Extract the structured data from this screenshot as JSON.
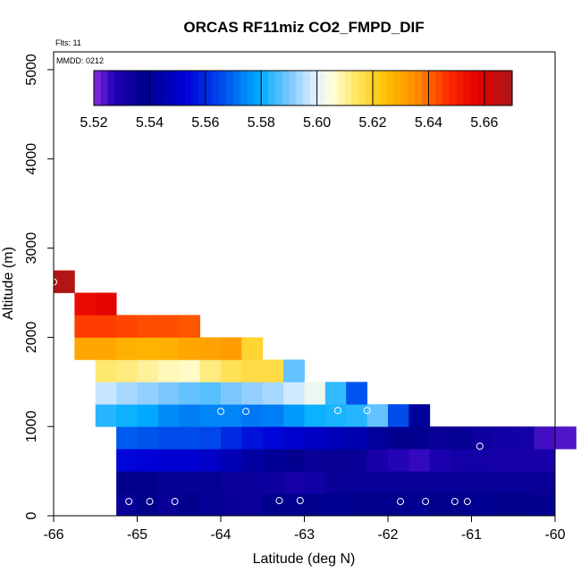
{
  "chart_data": {
    "type": "heatmap",
    "title": "ORCAS RF11miz CO2_FMPD_DIF",
    "xlabel": "Latitude (deg N)",
    "ylabel": "Altitude (m)",
    "xlim": [
      -66,
      -60
    ],
    "ylim": [
      0,
      5200
    ],
    "x_ticks": [
      "-66",
      "-65",
      "-64",
      "-63",
      "-62",
      "-61",
      "-60"
    ],
    "y_ticks": [
      "0",
      "1000",
      "2000",
      "3000",
      "4000",
      "5000"
    ],
    "annotations": {
      "flights": "Flts: 11",
      "date": "MMDD: 0212"
    },
    "colorbar": {
      "min": 5.52,
      "max": 5.67,
      "ticks": [
        "5.52",
        "5.54",
        "5.56",
        "5.58",
        "5.60",
        "5.62",
        "5.64",
        "5.66"
      ]
    },
    "cell_width_deg": 0.25,
    "cell_height_m": 250,
    "rows": [
      {
        "alt": 0,
        "x_start": -65.25,
        "values": [
          5.535,
          5.538,
          5.535,
          5.538,
          5.536,
          5.535,
          5.534,
          5.538,
          5.537,
          5.538,
          5.539,
          5.538,
          5.538,
          5.538,
          5.539,
          5.538,
          5.538,
          5.539,
          5.538,
          5.538,
          5.537
        ]
      },
      {
        "alt": 250,
        "x_start": -65.25,
        "values": [
          5.538,
          5.538,
          5.536,
          5.536,
          5.536,
          5.534,
          5.534,
          5.533,
          5.53,
          5.532,
          5.535,
          5.535,
          5.535,
          5.535,
          5.535,
          5.535,
          5.535,
          5.535,
          5.535,
          5.535,
          5.535
        ]
      },
      {
        "alt": 500,
        "x_start": -65.25,
        "values": [
          5.554,
          5.553,
          5.552,
          5.552,
          5.55,
          5.546,
          5.542,
          5.54,
          5.537,
          5.535,
          5.536,
          5.535,
          5.53,
          5.527,
          5.526,
          5.529,
          5.531,
          5.531,
          5.53,
          5.53,
          5.53
        ]
      },
      {
        "alt": 750,
        "x_start": -65.25,
        "values": [
          5.568,
          5.567,
          5.566,
          5.566,
          5.565,
          5.56,
          5.556,
          5.554,
          5.551,
          5.549,
          5.547,
          5.545,
          5.541,
          5.537,
          5.537,
          5.535,
          5.536,
          5.533,
          5.532,
          5.531,
          5.525,
          5.524
        ]
      },
      {
        "alt": 1000,
        "x_start": -65.5,
        "values": [
          5.583,
          5.581,
          5.579,
          5.575,
          5.573,
          5.574,
          5.574,
          5.572,
          5.573,
          5.577,
          5.581,
          5.582,
          5.583,
          5.588,
          5.566,
          5.541
        ]
      },
      {
        "alt": 1250,
        "x_start": -65.5,
        "values": [
          5.597,
          5.594,
          5.592,
          5.59,
          5.588,
          5.587,
          5.59,
          5.592,
          5.594,
          5.598,
          5.602,
          5.584,
          5.567
        ]
      },
      {
        "alt": 1500,
        "x_start": -65.5,
        "values": [
          5.613,
          5.612,
          5.61,
          5.608,
          5.607,
          5.612,
          5.615,
          5.617,
          5.617,
          5.588
        ]
      },
      {
        "alt": 1750,
        "x_start": -65.75,
        "values": [
          5.63,
          5.63,
          5.628,
          5.627,
          5.628,
          5.63,
          5.631,
          5.632,
          5.619
        ]
      },
      {
        "alt": 2000,
        "x_start": -65.75,
        "values": [
          5.645,
          5.645,
          5.644,
          5.643,
          5.643,
          5.642
        ]
      },
      {
        "alt": 2250,
        "x_start": -65.75,
        "values": [
          5.655,
          5.657
        ]
      },
      {
        "alt": 2500,
        "x_start": -66.0,
        "values": [
          5.668
        ]
      }
    ],
    "circle_points": [
      [
        -66.0,
        2620
      ],
      [
        -64.0,
        1170
      ],
      [
        -63.7,
        1170
      ],
      [
        -62.6,
        1180
      ],
      [
        -62.25,
        1180
      ],
      [
        -60.9,
        780
      ],
      [
        -65.1,
        160
      ],
      [
        -64.85,
        160
      ],
      [
        -64.55,
        160
      ],
      [
        -63.3,
        170
      ],
      [
        -63.05,
        170
      ],
      [
        -61.85,
        160
      ],
      [
        -61.55,
        160
      ],
      [
        -61.2,
        160
      ],
      [
        -61.05,
        160
      ]
    ]
  }
}
